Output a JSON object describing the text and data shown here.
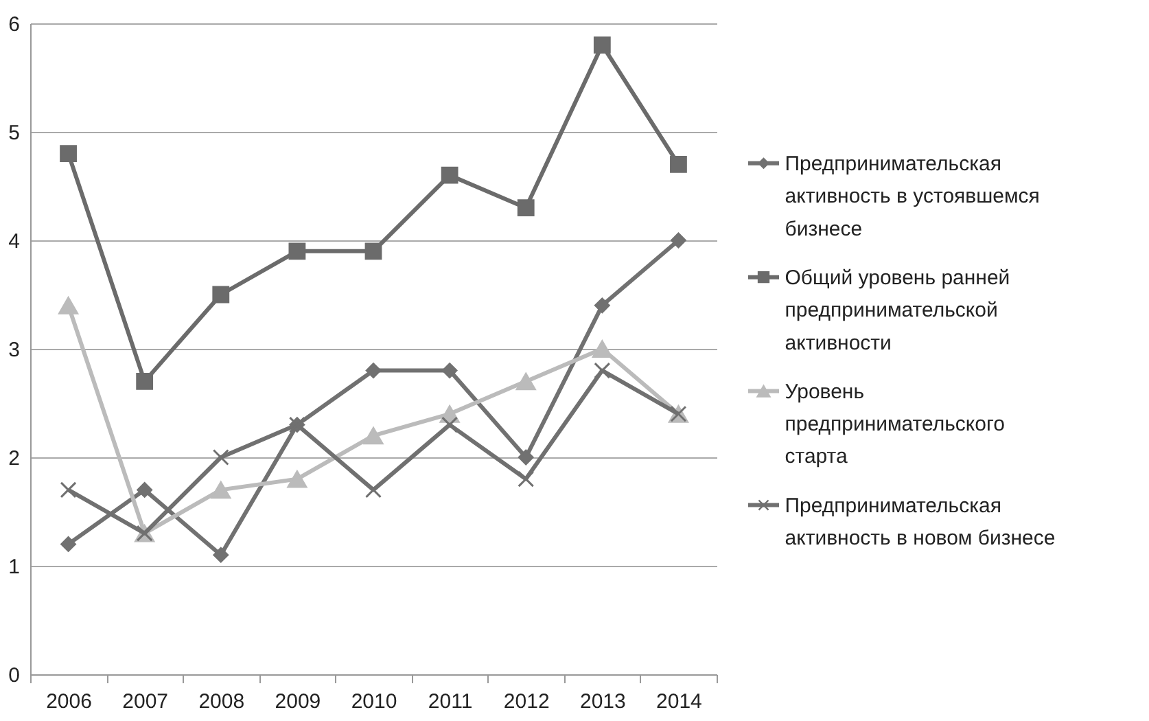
{
  "chart_data": {
    "type": "line",
    "categories": [
      "2006",
      "2007",
      "2008",
      "2009",
      "2010",
      "2011",
      "2012",
      "2013",
      "2014"
    ],
    "series": [
      {
        "name": "Предпринимательская активность в устоявшемся бизнесе",
        "color": "#717171",
        "marker": "diamond",
        "values": [
          1.2,
          1.7,
          1.1,
          2.3,
          2.8,
          2.8,
          2.0,
          3.4,
          4.0
        ]
      },
      {
        "name": "Общий уровень ранней предпринимательской активности",
        "color": "#6b6b6b",
        "marker": "square",
        "values": [
          4.8,
          2.7,
          3.5,
          3.9,
          3.9,
          4.6,
          4.3,
          5.8,
          4.7
        ]
      },
      {
        "name": "Уровень предпринимательского старта",
        "color": "#bbbbbb",
        "marker": "triangle",
        "values": [
          3.4,
          1.3,
          1.7,
          1.8,
          2.2,
          2.4,
          2.7,
          3.0,
          2.4
        ]
      },
      {
        "name": "Предпринимательская активность в новом бизнесе",
        "color": "#707070",
        "marker": "cross",
        "values": [
          1.7,
          1.3,
          2.0,
          2.3,
          1.7,
          2.3,
          1.8,
          2.8,
          2.4
        ]
      }
    ],
    "ylim": [
      0,
      6
    ],
    "yticks": [
      0,
      1,
      2,
      3,
      4,
      5,
      6
    ],
    "grid": "y",
    "legend": "right"
  }
}
